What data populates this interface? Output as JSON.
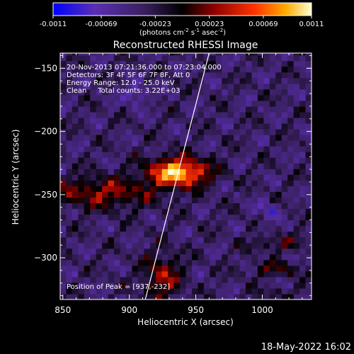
{
  "chart_data": {
    "type": "heatmap",
    "title": "Reconstructed RHESSI Image",
    "xlabel": "Heliocentric X (arcsec)",
    "ylabel": "Heliocentric Y (arcsec)",
    "xlim": [
      848,
      1037
    ],
    "ylim": [
      -333,
      -138
    ],
    "x_ticks": [
      850,
      900,
      950,
      1000
    ],
    "y_ticks": [
      -150,
      -200,
      -250,
      -300
    ],
    "colorbar": {
      "min": -0.0011,
      "max": 0.0011,
      "ticks": [
        "-0.0011",
        "-0.00069",
        "-0.00023",
        "0.00023",
        "0.00069",
        "0.0011"
      ],
      "unit_main": "(photons cm",
      "unit_sup1": "-2",
      "unit_mid1": " s",
      "unit_sup2": "-1",
      "unit_mid2": " asec",
      "unit_sup3": "-2",
      "unit_end": ")",
      "colors": [
        "#0000ff",
        "#6633aa",
        "#4b2a73",
        "#000000",
        "#8b0000",
        "#ff3300",
        "#ffaa00",
        "#ffffcc"
      ]
    },
    "annotations": [
      "20-Nov-2013 07:21:36.000 to 07:23:04.000",
      "Detectors: 3F 4F 5F 6F 7F 8F, Att 0",
      "Energy Range: 12.0 - 25.0 keV",
      "Clean     Total counts: 3.22E+03"
    ],
    "peak_label": "Position of Peak = [937,-232]",
    "peak": [
      937,
      -232
    ],
    "limb_line": [
      [
        912,
        -333
      ],
      [
        960,
        -138
      ]
    ]
  },
  "footer": {
    "date": "18-May-2022 16:02"
  }
}
